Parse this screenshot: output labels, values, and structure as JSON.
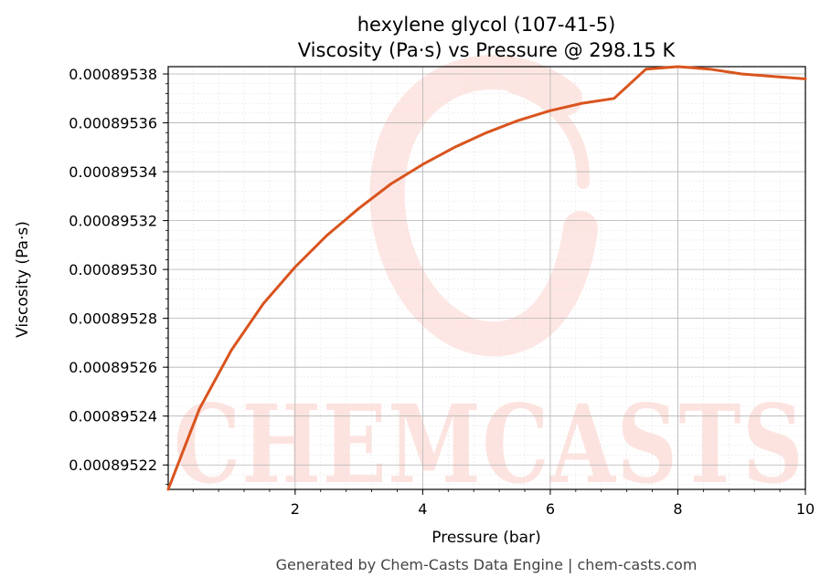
{
  "chart_data": {
    "type": "line",
    "title": "hexylene glycol (107-41-5)",
    "subtitle": "Viscosity (Pa·s) vs Pressure @ 298.15 K",
    "xlabel": "Pressure (bar)",
    "ylabel": "Viscosity (Pa·s)",
    "xlim": [
      0.01,
      10
    ],
    "ylim": [
      0.00089521,
      0.000895383
    ],
    "x_ticks": [
      2,
      4,
      6,
      8,
      10
    ],
    "x_tick_labels": [
      "2",
      "4",
      "6",
      "8",
      "10"
    ],
    "y_ticks": [
      0.00089522,
      0.00089524,
      0.00089526,
      0.00089528,
      0.0008953,
      0.00089532,
      0.00089534,
      0.00089536,
      0.00089538
    ],
    "y_tick_labels": [
      "0.00089522",
      "0.00089524",
      "0.00089526",
      "0.00089528",
      "0.00089530",
      "0.00089532",
      "0.00089534",
      "0.00089536",
      "0.00089538"
    ],
    "grid": true,
    "series": [
      {
        "color": "#d9541e",
        "x": [
          0.01,
          0.5,
          1.0,
          1.5,
          2.0,
          2.5,
          3.0,
          3.5,
          4.0,
          4.5,
          5.0,
          5.5,
          6.0,
          6.5,
          7.0,
          7.5,
          8.0,
          8.5,
          9.0,
          9.5,
          10.0
        ],
        "y": [
          0.00089521,
          0.000895243,
          0.000895267,
          0.000895286,
          0.000895301,
          0.000895314,
          0.000895325,
          0.000895335,
          0.000895343,
          0.00089535,
          0.000895356,
          0.000895361,
          0.000895365,
          0.000895368,
          0.00089537,
          0.000895382,
          0.000895383,
          0.000895382,
          0.00089538,
          0.000895379,
          0.000895378
        ]
      }
    ],
    "watermark": "CHEMCASTS"
  },
  "footer": "Generated by Chem-Casts Data Engine | chem-casts.com"
}
